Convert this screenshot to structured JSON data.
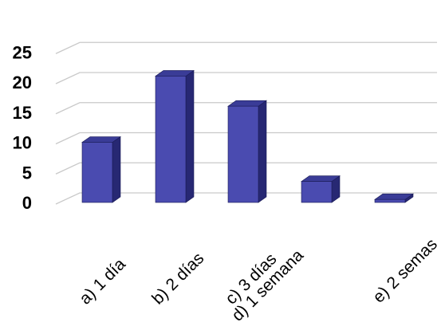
{
  "chart_data": {
    "type": "bar",
    "categories": [
      "a) 1 día",
      "b) 2 días",
      "c) 3 días",
      "d) 1 semana",
      "e) 2 semas"
    ],
    "values": [
      10,
      21,
      16,
      3.5,
      0.5
    ],
    "yticks": [
      "0",
      "5",
      "10",
      "15",
      "20",
      "25"
    ],
    "ylim": [
      0,
      25
    ],
    "grid": true,
    "bar_style": "3d",
    "colors": {
      "bar_front": "#4a4bb0",
      "bar_side": "#272873",
      "bar_top": "#3a3c97",
      "bar_edge": "#1a1b55",
      "grid": "#c9c9c9"
    }
  }
}
